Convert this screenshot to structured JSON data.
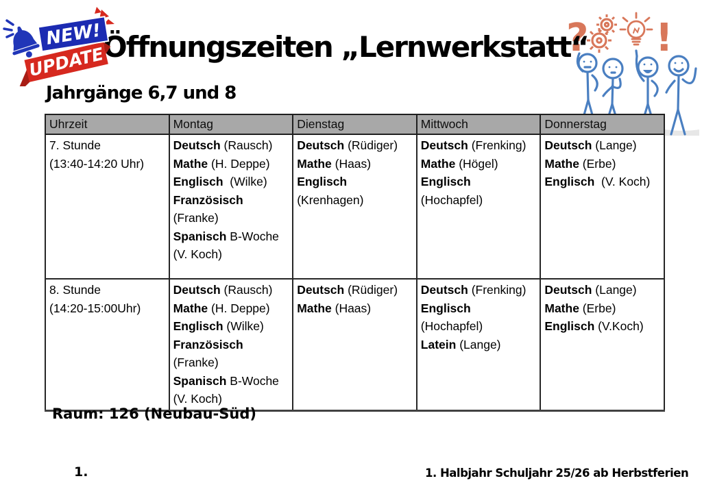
{
  "title": "Öffnungszeiten „Lernwerkstatt“",
  "subtitle": "Jahrgänge 6,7 und 8",
  "badge": {
    "new_label": "NEW!",
    "update_label": "UPDATE",
    "bell_icon": "bell-icon"
  },
  "decor": {
    "icons": [
      "question-mark-icon",
      "gears-icon",
      "lightbulb-icon",
      "exclamation-mark-icon"
    ],
    "figures": "four-blue-stick-figures-thinking-and-pointing"
  },
  "table": {
    "headers": [
      "Uhrzeit",
      "Montag",
      "Dienstag",
      "Mittwoch",
      "Donnerstag"
    ],
    "rows": [
      {
        "time": [
          "7. Stunde",
          "(13:40-14:20 Uhr)"
        ],
        "days": [
          [
            [
              "Deutsch",
              " (Rausch)"
            ],
            [
              "Mathe",
              " (H. Deppe)"
            ],
            [
              "Englisch",
              "  (Wilke)"
            ],
            [
              "Französisch",
              ""
            ],
            [
              "",
              "(Franke)"
            ],
            [
              "Spanisch",
              " B-Woche"
            ],
            [
              "",
              "(V. Koch)"
            ]
          ],
          [
            [
              "Deutsch",
              " (Rüdiger)"
            ],
            [
              "Mathe",
              " (Haas)"
            ],
            [
              "Englisch",
              ""
            ],
            [
              "",
              "(Krenhagen)"
            ]
          ],
          [
            [
              "Deutsch",
              " (Frenking)"
            ],
            [
              "Mathe",
              " (Högel)"
            ],
            [
              "Englisch",
              ""
            ],
            [
              "",
              "(Hochapfel)"
            ]
          ],
          [
            [
              "Deutsch",
              " (Lange)"
            ],
            [
              "Mathe",
              " (Erbe)"
            ],
            [
              "Englisch",
              "  (V. Koch)"
            ]
          ]
        ]
      },
      {
        "time": [
          "8. Stunde",
          "(14:20-15:00Uhr)"
        ],
        "days": [
          [
            [
              "Deutsch",
              " (Rausch)"
            ],
            [
              "Mathe",
              " (H. Deppe)"
            ],
            [
              "Englisch",
              " (Wilke)"
            ],
            [
              "Französisch",
              ""
            ],
            [
              "",
              "(Franke)"
            ],
            [
              "Spanisch",
              " B-Woche"
            ],
            [
              "",
              "(V. Koch)"
            ]
          ],
          [
            [
              "Deutsch",
              " (Rüdiger)"
            ],
            [
              "Mathe",
              " (Haas)"
            ]
          ],
          [
            [
              "Deutsch",
              " (Frenking)"
            ],
            [
              "Englisch",
              ""
            ],
            [
              "",
              "(Hochapfel)"
            ],
            [
              "Latein",
              " (Lange)"
            ]
          ],
          [
            [
              "Deutsch",
              " (Lange)"
            ],
            [
              "Mathe",
              " (Erbe)"
            ],
            [
              "Englisch",
              " (V.Koch)"
            ]
          ]
        ]
      }
    ]
  },
  "room_note": "Raum: 126 (Neubau-Süd)",
  "footer": {
    "left": "1.",
    "right": "1. Halbjahr Schuljahr 25/26 ab Herbstferien"
  },
  "colors": {
    "header_gray": "#a8a8a8",
    "badge_blue": "#1c2bb2",
    "badge_red": "#d6291f",
    "doodle_orange": "#d8775a",
    "doodle_blue": "#4a7fc1"
  }
}
